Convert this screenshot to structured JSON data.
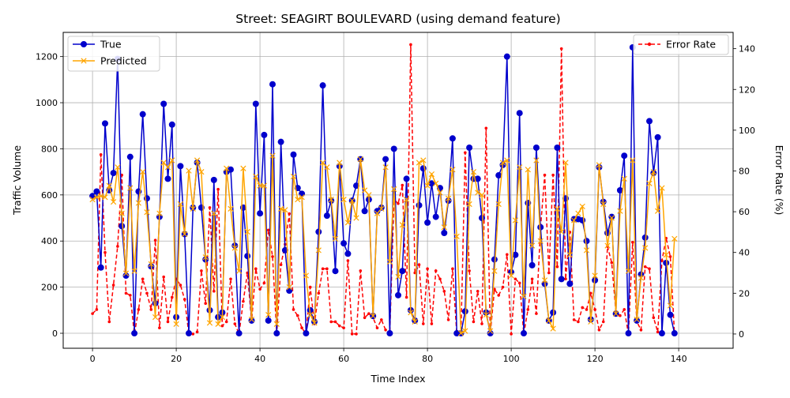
{
  "chart_data": {
    "type": "line",
    "title": "Street: SEAGIRT BOULEVARD (using demand feature)",
    "xlabel": "Time Index",
    "ylabel": "Traffic Volume",
    "y2label": "Error Rate (%)",
    "xlim": [
      -7,
      153
    ],
    "ylim": [
      -65,
      1305
    ],
    "y2lim": [
      -7,
      148
    ],
    "xticks": [
      0,
      20,
      40,
      60,
      80,
      100,
      120,
      140
    ],
    "yticks": [
      0,
      200,
      400,
      600,
      800,
      1000,
      1200
    ],
    "y2ticks": [
      0,
      20,
      40,
      60,
      80,
      100,
      120,
      140
    ],
    "grid": true,
    "legend_left_position": "upper-left",
    "legend_right_position": "upper-right",
    "colors": {
      "true": "#0000cc",
      "predicted": "#ffa500",
      "error": "#ff0000",
      "grid": "#b0b0b0"
    },
    "series": [
      {
        "name": "True",
        "axis": "left",
        "values": [
          595,
          615,
          285,
          910,
          620,
          695,
          1190,
          465,
          250,
          765,
          0,
          615,
          950,
          585,
          290,
          130,
          505,
          995,
          670,
          905,
          70,
          725,
          430,
          0,
          545,
          740,
          545,
          320,
          100,
          665,
          70,
          90,
          700,
          710,
          380,
          0,
          545,
          335,
          55,
          995,
          520,
          860,
          55,
          1080,
          0,
          830,
          360,
          185,
          775,
          630,
          605,
          0,
          100,
          50,
          440,
          1075,
          510,
          575,
          270,
          725,
          390,
          345,
          575,
          640,
          755,
          530,
          580,
          75,
          530,
          545,
          755,
          0,
          800,
          165,
          270,
          670,
          100,
          55,
          555,
          715,
          480,
          650,
          505,
          630,
          435,
          575,
          845,
          0,
          0,
          95,
          805,
          670,
          670,
          500,
          90,
          0,
          320,
          685,
          730,
          1200,
          265,
          340,
          955,
          0,
          565,
          295,
          805,
          460,
          215,
          55,
          90,
          805,
          235,
          585,
          215,
          495,
          495,
          490,
          400,
          60,
          230,
          720,
          570,
          435,
          505,
          85,
          620,
          770,
          0,
          1240,
          55,
          255,
          415,
          920,
          695,
          850,
          0,
          305,
          80,
          0
        ]
      },
      {
        "name": "Predicted",
        "axis": "left",
        "values": [
          580,
          590,
          595,
          590,
          640,
          570,
          720,
          520,
          260,
          630,
          270,
          565,
          700,
          525,
          300,
          70,
          520,
          740,
          720,
          750,
          40,
          560,
          430,
          705,
          540,
          750,
          700,
          330,
          45,
          520,
          40,
          70,
          715,
          540,
          370,
          270,
          715,
          440,
          60,
          680,
          640,
          640,
          80,
          770,
          40,
          540,
          535,
          200,
          680,
          580,
          590,
          250,
          80,
          45,
          360,
          740,
          720,
          580,
          410,
          740,
          580,
          480,
          575,
          500,
          755,
          620,
          600,
          75,
          520,
          540,
          720,
          310,
          625,
          245,
          470,
          580,
          90,
          50,
          740,
          750,
          640,
          690,
          650,
          610,
          460,
          585,
          710,
          420,
          0,
          10,
          560,
          700,
          610,
          600,
          80,
          10,
          270,
          560,
          740,
          750,
          250,
          490,
          720,
          160,
          710,
          380,
          750,
          400,
          230,
          55,
          20,
          540,
          440,
          740,
          340,
          490,
          520,
          550,
          360,
          50,
          250,
          730,
          560,
          380,
          500,
          85,
          530,
          670,
          270,
          750,
          60,
          240,
          370,
          650,
          700,
          530,
          630,
          340,
          120,
          410
        ]
      },
      {
        "name": "Error Rate",
        "axis": "right",
        "values": [
          10,
          12,
          88,
          40,
          6,
          24,
          43,
          78,
          20,
          19,
          0,
          12,
          27,
          20,
          12,
          46,
          3,
          28,
          6,
          18,
          27,
          24,
          17,
          0,
          0,
          1,
          31,
          15,
          62,
          21,
          71,
          4,
          6,
          27,
          5,
          0,
          16,
          30,
          6,
          32,
          22,
          25,
          51,
          38,
          0,
          34,
          44,
          59,
          12,
          9,
          3,
          0,
          23,
          5,
          20,
          32,
          32,
          6,
          6,
          4,
          3,
          36,
          0,
          0,
          31,
          8,
          10,
          8,
          3,
          7,
          2,
          0,
          66,
          64,
          73,
          18,
          142,
          30,
          34,
          5,
          32,
          5,
          31,
          27,
          21,
          7,
          32,
          0,
          0,
          89,
          31,
          6,
          21,
          5,
          101,
          0,
          22,
          19,
          23,
          39,
          0,
          27,
          25,
          0,
          12,
          27,
          10,
          52,
          78,
          30,
          78,
          33,
          140,
          27,
          50,
          7,
          6,
          13,
          12,
          20,
          12,
          2,
          6,
          43,
          35,
          11,
          9,
          12,
          0,
          45,
          6,
          2,
          33,
          32,
          8,
          1,
          36,
          47,
          38,
          0
        ]
      }
    ]
  }
}
